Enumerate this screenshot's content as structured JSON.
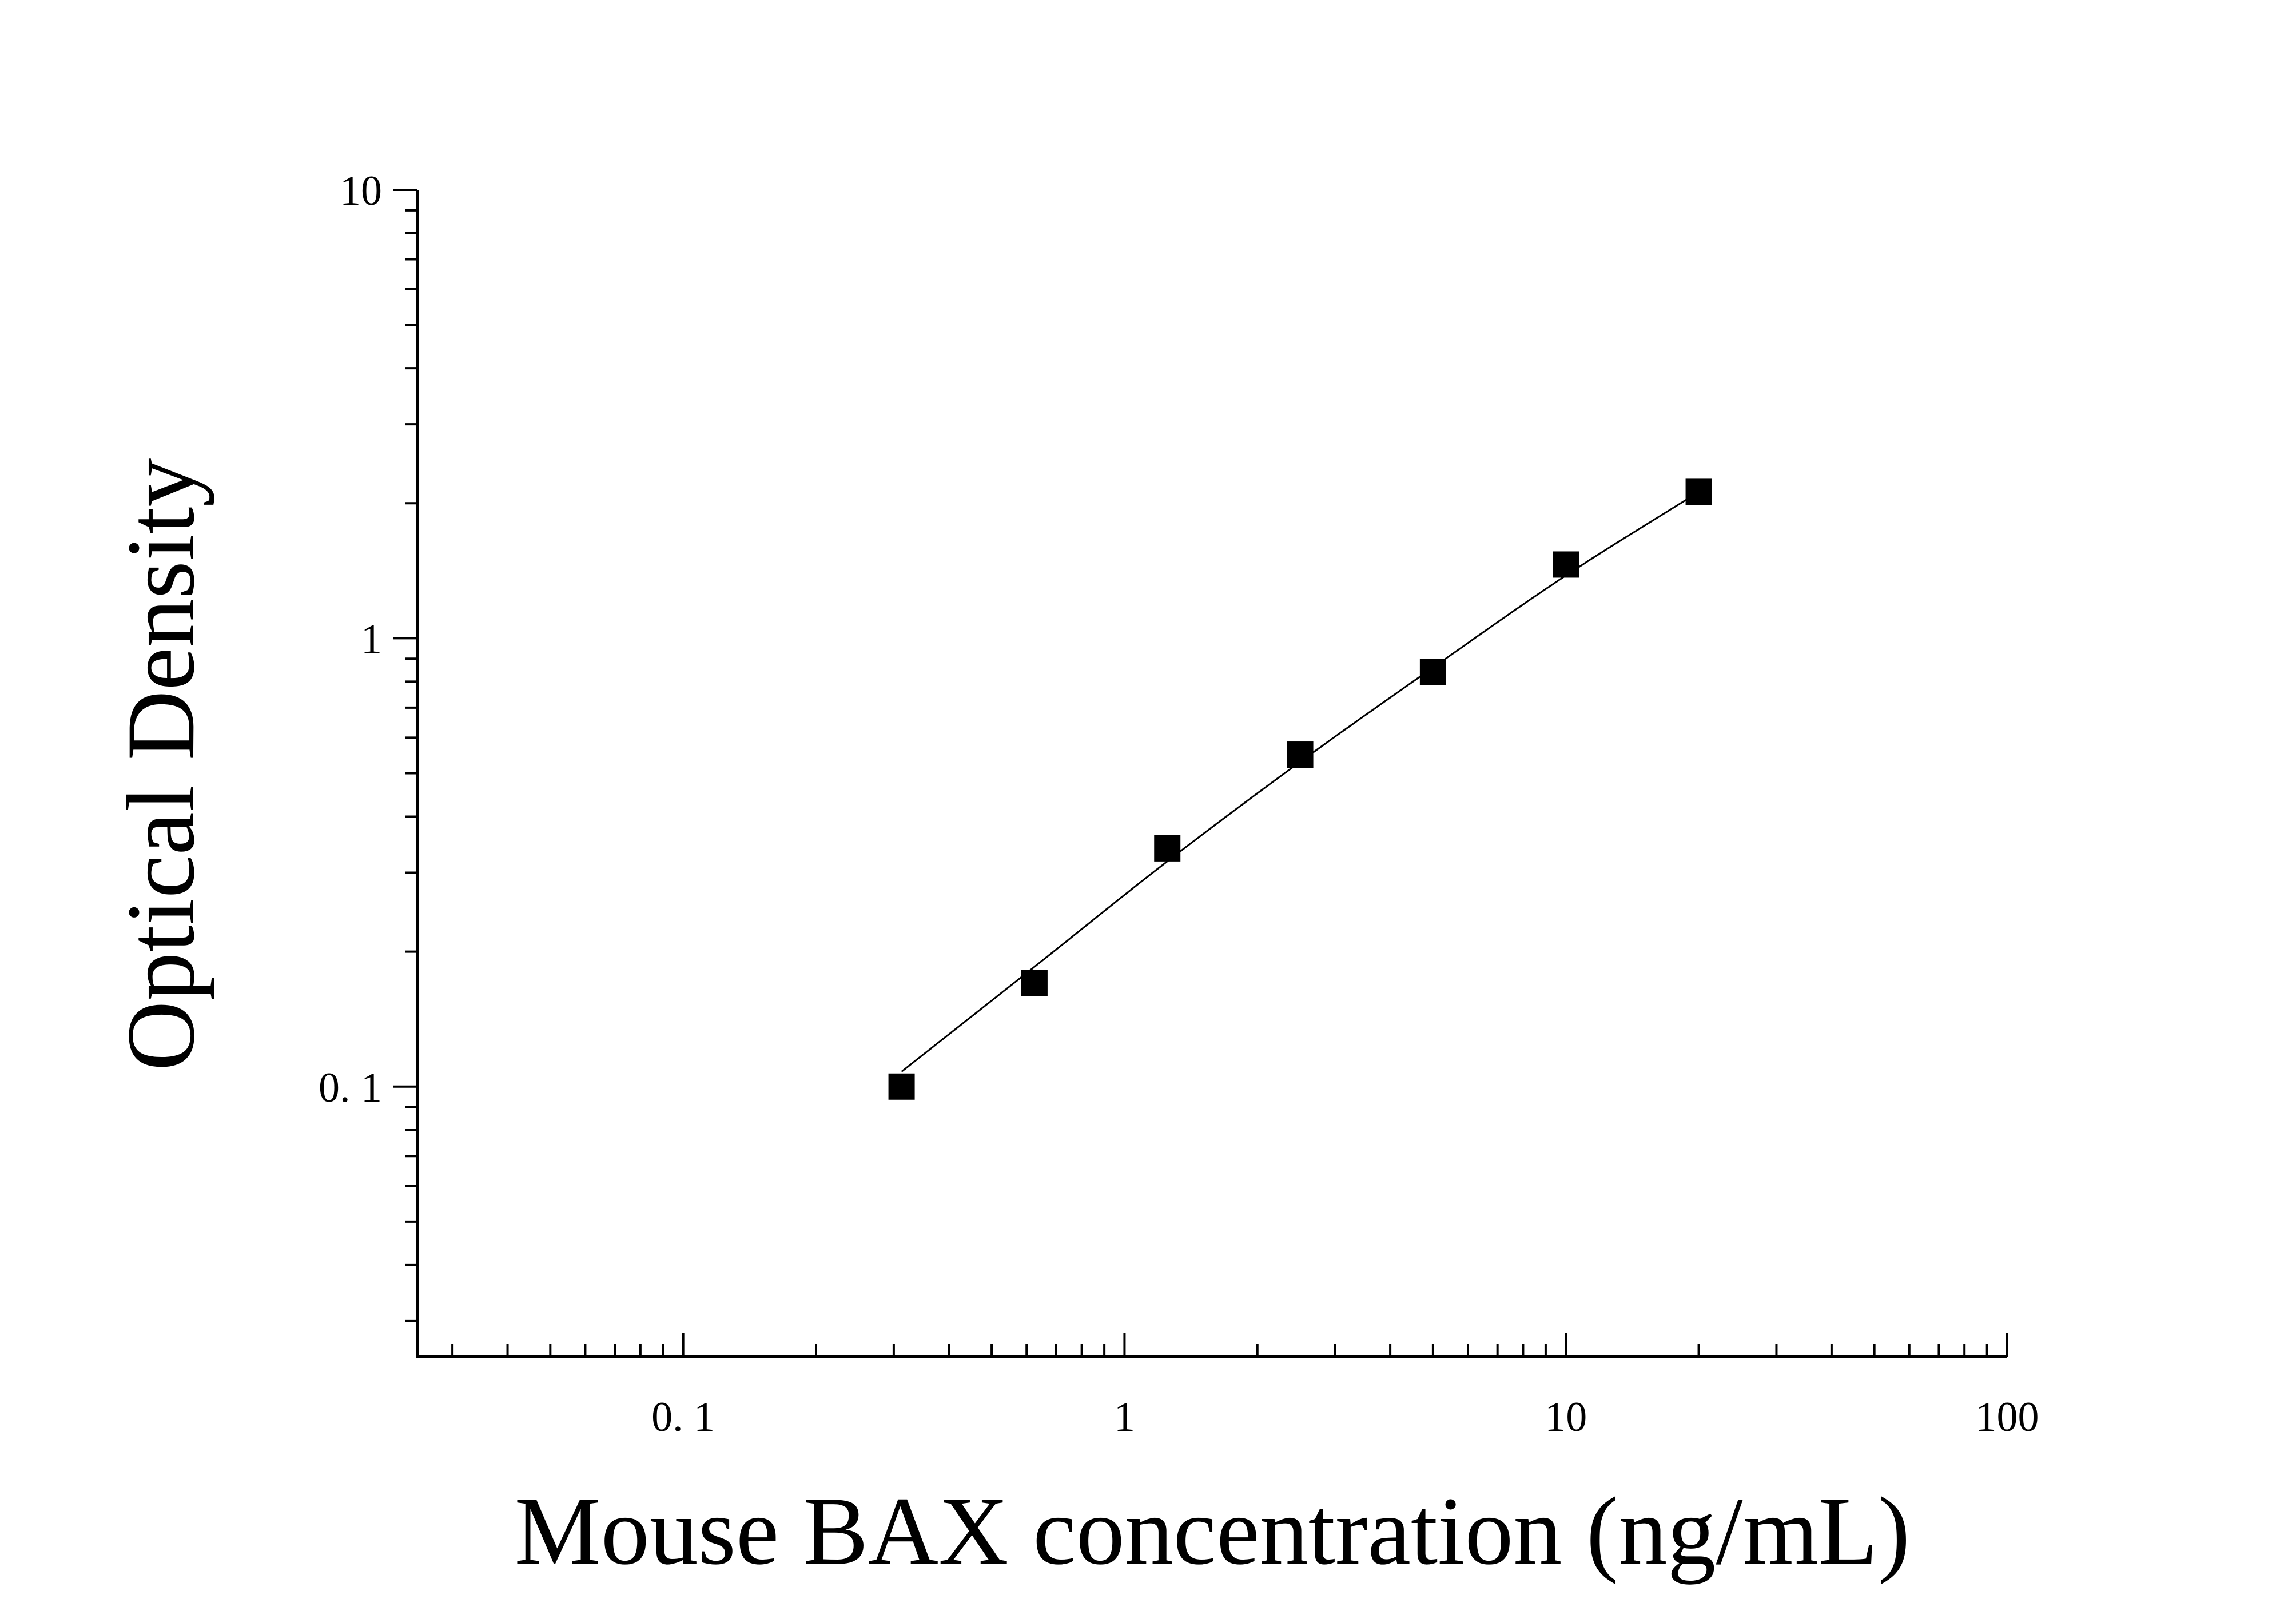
{
  "chart_data": {
    "type": "scatter",
    "title": "",
    "xlabel": "Mouse BAX concentration (ng/mL)",
    "ylabel": "Optical Density",
    "x_scale": "log",
    "y_scale": "log",
    "xlim": [
      0.025,
      100
    ],
    "ylim": [
      0.025,
      10
    ],
    "x_tick_values": [
      0.1,
      1,
      10,
      100
    ],
    "x_tick_labels": [
      "0. 1",
      "1",
      "10",
      "100"
    ],
    "y_tick_values": [
      0.1,
      1,
      10
    ],
    "y_tick_labels": [
      "0. 1",
      "1",
      "10"
    ],
    "grid": false,
    "legend": false,
    "series": [
      {
        "marker": "square",
        "color": "#000000",
        "x": [
          0.3125,
          0.625,
          1.25,
          2.5,
          5,
          10,
          20
        ],
        "y": [
          0.1,
          0.17,
          0.34,
          0.55,
          0.84,
          1.46,
          2.12
        ]
      }
    ],
    "fit_curve": {
      "color": "#000000",
      "x": [
        0.3125,
        0.625,
        1.25,
        2.5,
        5,
        10,
        20
      ],
      "y": [
        0.108,
        0.185,
        0.318,
        0.53,
        0.86,
        1.38,
        2.12
      ]
    }
  }
}
